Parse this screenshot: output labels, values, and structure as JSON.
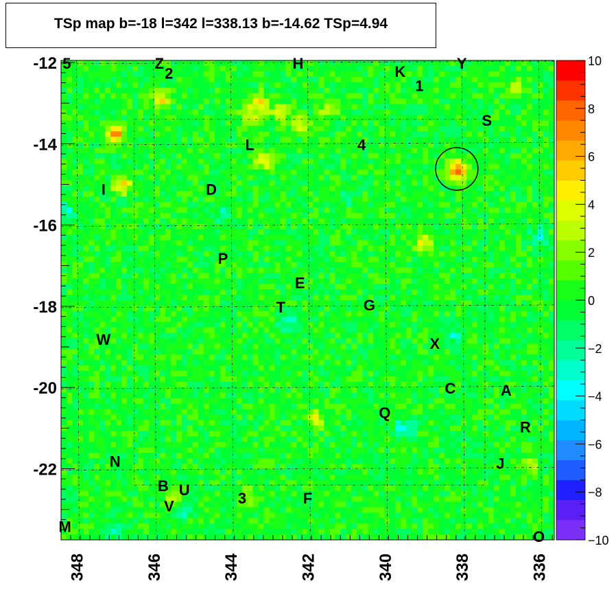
{
  "title": "TSp map b=-18 l=342 l=338.13 b=-14.62 TSp=4.94",
  "chart_data": {
    "type": "heatmap",
    "title": "TSp map b=-18 l=342 l=338.13 b=-14.62 TSp=4.94",
    "xlabel": "",
    "ylabel": "",
    "xlim": [
      348.4,
      335.6
    ],
    "ylim": [
      -23.75,
      -11.95
    ],
    "x_ticks": [
      "348",
      "346",
      "344",
      "342",
      "340",
      "338",
      "336"
    ],
    "x_tick_values": [
      348,
      346,
      344,
      342,
      340,
      338,
      336
    ],
    "y_ticks": [
      "-12",
      "-14",
      "-16",
      "-18",
      "-20",
      "-22"
    ],
    "y_tick_values": [
      -12,
      -14,
      -16,
      -18,
      -20,
      -22
    ],
    "colorbar": {
      "range": [
        -10,
        10
      ],
      "tick_labels": [
        "10",
        "8",
        "6",
        "4",
        "2",
        "0",
        "−2",
        "−4",
        "−6",
        "−8",
        "−10"
      ],
      "tick_values": [
        10,
        8,
        6,
        4,
        2,
        0,
        -2,
        -4,
        -6,
        -8,
        -10
      ],
      "colors": [
        "#7b2ff7",
        "#5a1ff5",
        "#2020ff",
        "#1f5cff",
        "#1f8bff",
        "#00b4ff",
        "#00dcff",
        "#00ffff",
        "#00ffcc",
        "#00ff99",
        "#00ff66",
        "#00ff33",
        "#19ff19",
        "#55ff00",
        "#88ff00",
        "#bbff00",
        "#ddff00",
        "#ffee00",
        "#ffcc00",
        "#ffaa00",
        "#ff8800",
        "#ff6600",
        "#ff3300",
        "#ff0000"
      ]
    },
    "background_ts": 0,
    "hotspots": [
      {
        "l": 347.0,
        "b": -13.75,
        "ts": 7.5
      },
      {
        "l": 346.8,
        "b": -15.0,
        "ts": 5
      },
      {
        "l": 345.8,
        "b": -12.9,
        "ts": 4.5
      },
      {
        "l": 343.2,
        "b": -13.0,
        "ts": 4.5
      },
      {
        "l": 343.5,
        "b": -13.3,
        "ts": 4
      },
      {
        "l": 342.7,
        "b": -13.2,
        "ts": 3.5
      },
      {
        "l": 342.2,
        "b": -13.5,
        "ts": 3.5
      },
      {
        "l": 341.5,
        "b": -13.2,
        "ts": 3
      },
      {
        "l": 343.1,
        "b": -14.4,
        "ts": 5
      },
      {
        "l": 338.13,
        "b": -14.62,
        "ts": 4.94
      },
      {
        "l": 338.0,
        "b": -14.7,
        "ts": 4.5
      },
      {
        "l": 339.0,
        "b": -16.4,
        "ts": 4.5
      },
      {
        "l": 341.8,
        "b": -20.8,
        "ts": 3.5
      },
      {
        "l": 345.5,
        "b": -22.7,
        "ts": 3
      },
      {
        "l": 343.5,
        "b": -22.7,
        "ts": 3
      },
      {
        "l": 336.2,
        "b": -21.9,
        "ts": 3
      },
      {
        "l": 336.6,
        "b": -12.6,
        "ts": 3
      }
    ],
    "coldspots": [
      {
        "l": 339.5,
        "b": -21.0,
        "ts": -3.5
      },
      {
        "l": 347.0,
        "b": -23.5,
        "ts": -3
      },
      {
        "l": 341.0,
        "b": -15.3,
        "ts": -2.5
      },
      {
        "l": 345.2,
        "b": -23.0,
        "ts": -2.5
      },
      {
        "l": 336.0,
        "b": -16.3,
        "ts": -3
      },
      {
        "l": 344.2,
        "b": -15.7,
        "ts": -2.5
      },
      {
        "l": 342.5,
        "b": -18.4,
        "ts": -2.5
      },
      {
        "l": 338.2,
        "b": -18.7,
        "ts": -2.5
      },
      {
        "l": 348.3,
        "b": -15.7,
        "ts": -3
      }
    ],
    "circle": {
      "l": 338.13,
      "b": -14.62,
      "radius_deg": 0.55
    },
    "source_labels": [
      {
        "text": "5",
        "l": 348.25,
        "b": -12.0
      },
      {
        "text": "Z",
        "l": 345.85,
        "b": -12.0
      },
      {
        "text": "2",
        "l": 345.6,
        "b": -12.25
      },
      {
        "text": "H",
        "l": 342.25,
        "b": -12.0
      },
      {
        "text": "K",
        "l": 339.6,
        "b": -12.2
      },
      {
        "text": "1",
        "l": 339.1,
        "b": -12.55
      },
      {
        "text": "Y",
        "l": 338.0,
        "b": -12.0
      },
      {
        "text": "S",
        "l": 337.35,
        "b": -13.4
      },
      {
        "text": "L",
        "l": 343.5,
        "b": -14.0
      },
      {
        "text": "4",
        "l": 340.6,
        "b": -14.0
      },
      {
        "text": "I",
        "l": 347.3,
        "b": -15.1
      },
      {
        "text": "D",
        "l": 344.5,
        "b": -15.1
      },
      {
        "text": "P",
        "l": 344.2,
        "b": -16.8
      },
      {
        "text": "E",
        "l": 342.2,
        "b": -17.4
      },
      {
        "text": "T",
        "l": 342.7,
        "b": -18.0
      },
      {
        "text": "G",
        "l": 340.4,
        "b": -17.95
      },
      {
        "text": "W",
        "l": 347.3,
        "b": -18.8
      },
      {
        "text": "X",
        "l": 338.7,
        "b": -18.9
      },
      {
        "text": "C",
        "l": 338.3,
        "b": -20.0
      },
      {
        "text": "A",
        "l": 336.85,
        "b": -20.05
      },
      {
        "text": "Q",
        "l": 340.0,
        "b": -20.6
      },
      {
        "text": "R",
        "l": 336.35,
        "b": -20.95
      },
      {
        "text": "N",
        "l": 347.0,
        "b": -21.8
      },
      {
        "text": "J",
        "l": 337.0,
        "b": -21.85
      },
      {
        "text": "B",
        "l": 345.75,
        "b": -22.4
      },
      {
        "text": "U",
        "l": 345.2,
        "b": -22.5
      },
      {
        "text": "3",
        "l": 343.7,
        "b": -22.7
      },
      {
        "text": "F",
        "l": 342.0,
        "b": -22.7
      },
      {
        "text": "V",
        "l": 345.6,
        "b": -22.9
      },
      {
        "text": "M",
        "l": 348.3,
        "b": -23.4
      },
      {
        "text": "O",
        "l": 336.0,
        "b": -23.65
      }
    ]
  }
}
